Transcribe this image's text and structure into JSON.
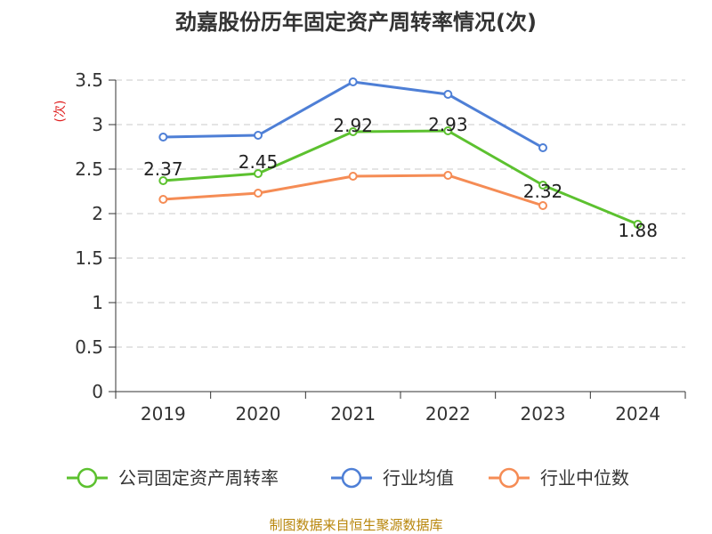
{
  "chart_data": {
    "type": "line",
    "title": "劲嘉股份历年固定资产周转率情况(次)",
    "ylabel": "(次)",
    "xlabel": "",
    "categories": [
      "2019",
      "2020",
      "2021",
      "2022",
      "2023",
      "2024"
    ],
    "y_ticks": [
      "0",
      "0.5",
      "1",
      "1.5",
      "2",
      "2.5",
      "3",
      "3.5"
    ],
    "ylim": [
      0,
      3.5
    ],
    "grid": true,
    "legend_position": "bottom",
    "series": [
      {
        "name": "公司固定资产周转率",
        "color": "#5cc12f",
        "values": [
          2.37,
          2.45,
          2.92,
          2.93,
          2.32,
          1.88
        ],
        "labels": [
          "2.37",
          "2.45",
          "2.92",
          "2.93",
          "2.32",
          "1.88"
        ]
      },
      {
        "name": "行业均值",
        "color": "#4e7fd6",
        "values": [
          2.86,
          2.88,
          3.48,
          3.34,
          2.74,
          null
        ]
      },
      {
        "name": "行业中位数",
        "color": "#f58c55",
        "values": [
          2.16,
          2.23,
          2.42,
          2.43,
          2.09,
          null
        ]
      }
    ],
    "source": "制图数据来自恒生聚源数据库"
  }
}
